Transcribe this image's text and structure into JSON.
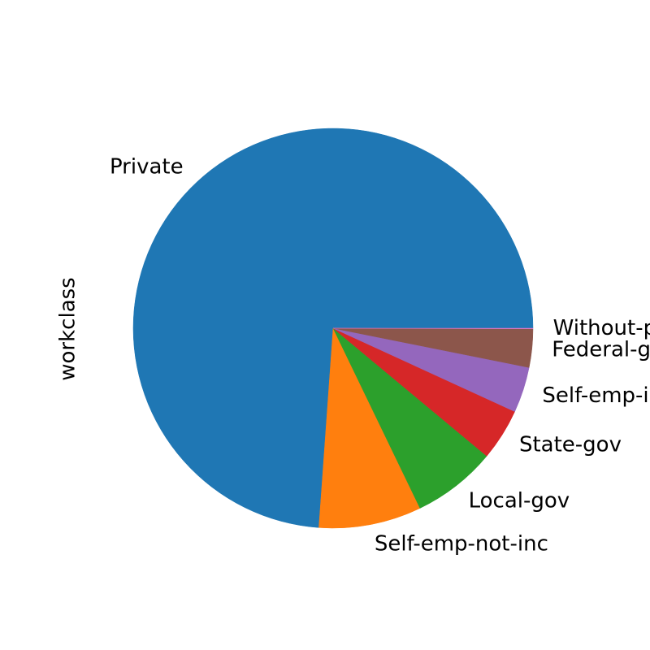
{
  "chart_data": {
    "type": "pie",
    "ylabel": "workclass",
    "slices": [
      {
        "label": "Private",
        "value": 73.9,
        "color": "#1f77b4"
      },
      {
        "label": "Self-emp-not-inc",
        "value": 8.3,
        "color": "#ff7f0e"
      },
      {
        "label": "Local-gov",
        "value": 6.8,
        "color": "#2ca02c"
      },
      {
        "label": "State-gov",
        "value": 4.2,
        "color": "#d62728"
      },
      {
        "label": "Self-emp-inc",
        "value": 3.7,
        "color": "#9467bd"
      },
      {
        "label": "Federal-gov",
        "value": 3.1,
        "color": "#8c564b"
      },
      {
        "label": "Without-pay",
        "value": 0.05,
        "color": "#e377c2"
      }
    ]
  }
}
